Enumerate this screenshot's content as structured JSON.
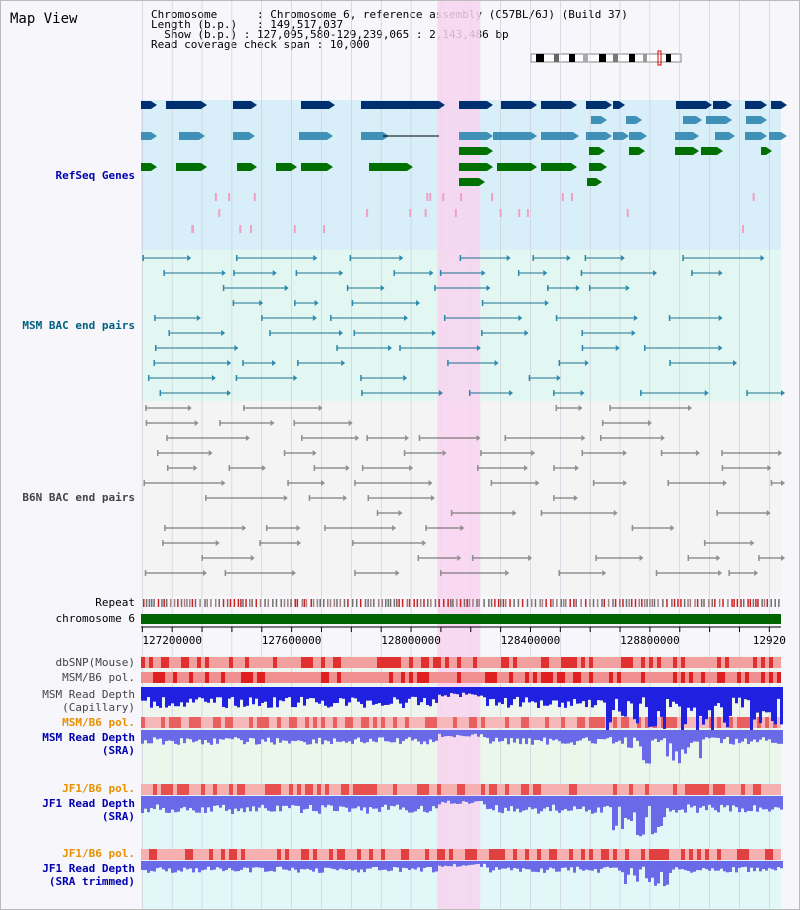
{
  "page": {
    "title": "Map View"
  },
  "info": {
    "chromosome_key": "Chromosome",
    "chromosome_val": "Chromosome 6, reference assembly (C57BL/6J) (Build 37)",
    "length_key": "Length (b.p.)",
    "length_val": "149,517,037",
    "show_key": "Show (b.p.)",
    "show_val": "127,095,580-129,239,065 : 2,143,486 bp",
    "span_key": "Read coverage check span",
    "span_val": "10,000"
  },
  "view": {
    "start": 127095580,
    "end": 129239065,
    "highlight_start": 128088000,
    "highlight_end": 128232000
  },
  "tracks": {
    "refseq": "RefSeq Genes",
    "msm_bac": "MSM BAC end pairs",
    "b6n_bac": "B6N BAC end pairs",
    "repeat": "Repeat",
    "chromosome": "chromosome 6",
    "dbsnp": "dbSNP(Mouse)",
    "msm_b6_pol": "MSM/B6 pol.",
    "msm_depth_cap_1": "MSM Read Depth",
    "msm_depth_cap_2": "(Capillary)",
    "msm_b6_pol_2": "MSM/B6 pol.",
    "msm_depth_sra_1": "MSM Read Depth",
    "msm_depth_sra_2": "(SRA)",
    "jf1_b6_pol": "JF1/B6 pol.",
    "jf1_depth_sra_1": "JF1 Read Depth",
    "jf1_depth_sra_2": "(SRA)",
    "jf1_b6_pol_2": "JF1/B6 pol.",
    "jf1_depth_trim_1": "JF1 Read Depth",
    "jf1_depth_trim_2": "(SRA trimmed)"
  },
  "axis": {
    "ticks": [
      "127200000",
      "127600000",
      "128000000",
      "128400000",
      "128800000",
      "12920"
    ]
  },
  "colors": {
    "refseq_bg": "#d8eef8",
    "msm_bg": "#e2f7f2",
    "b6n_bg": "#f4f4f4",
    "highlight": "#f8d4f0",
    "label_blue": "#0000b0",
    "label_teal": "#006080",
    "label_gray": "#444444",
    "label_orange": "#e89000",
    "gene_dark": "#003070",
    "gene_mid": "#4090b8",
    "gene_green": "#007000",
    "depth_blue": "#2020e0",
    "depth_light": "#6a6ae8"
  }
}
